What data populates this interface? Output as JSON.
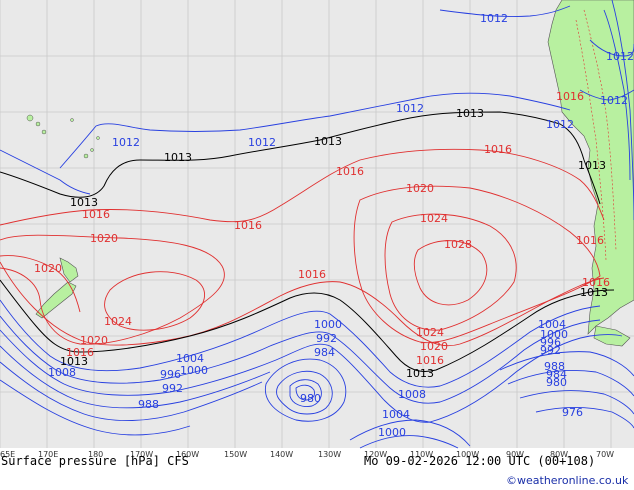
{
  "map": {
    "title": "Surface pressure [hPa] CFS",
    "valid_time": "Mo 09-02-2026 12:00 UTC (00+108)",
    "credit": "©weatheronline.co.uk",
    "colors": {
      "ocean": "#e9e9e9",
      "land": "#b8f0a0",
      "grid": "#c8c8c8",
      "high_isobar": "#e03030",
      "low_isobar": "#2840e0",
      "reference_isobar": "#000000"
    },
    "longitude_ticks": [
      "65E",
      "170E",
      "180",
      "170W",
      "160W",
      "150W",
      "140W",
      "130W",
      "120W",
      "110W",
      "100W",
      "90W",
      "80W",
      "70W"
    ],
    "isobar_labels": {
      "l1012a": "1012",
      "l1012b": "1012",
      "l1012c": "1012",
      "l1012d": "1012",
      "l1012e": "1012",
      "l1012f": "1012",
      "l1012g": "1012",
      "l1013a": "1013",
      "l1013b": "1013",
      "l1013c": "1013",
      "l1013d": "1013",
      "l1013e": "1013",
      "l1013f": "1013",
      "l1013g": "1013",
      "l1013h": "1013",
      "l1016a": "1016",
      "l1016b": "1016",
      "l1016c": "1016",
      "l1016d": "1016",
      "l1016e": "1016",
      "l1016f": "1016",
      "l1016g": "1016",
      "l1016h": "1016",
      "l1016i": "1016",
      "l1020a": "1020",
      "l1020b": "1020",
      "l1020c": "1020",
      "l1020d": "1020",
      "l1020e": "1020",
      "l1024a": "1024",
      "l1024b": "1024",
      "l1024c": "1024",
      "l1028": "1028",
      "l1008a": "1008",
      "l1008b": "1008",
      "l1004a": "1004",
      "l1004b": "1004",
      "l1004c": "1004",
      "l1000a": "1000",
      "l1000b": "1000",
      "l1000c": "1000",
      "l1000d": "1000",
      "l996a": "996",
      "l996b": "996",
      "l992a": "992",
      "l992b": "992",
      "l992c": "992",
      "l988a": "988",
      "l988b": "988",
      "l984a": "984",
      "l984b": "984",
      "l980a": "980",
      "l980b": "980",
      "l976": "976"
    }
  }
}
